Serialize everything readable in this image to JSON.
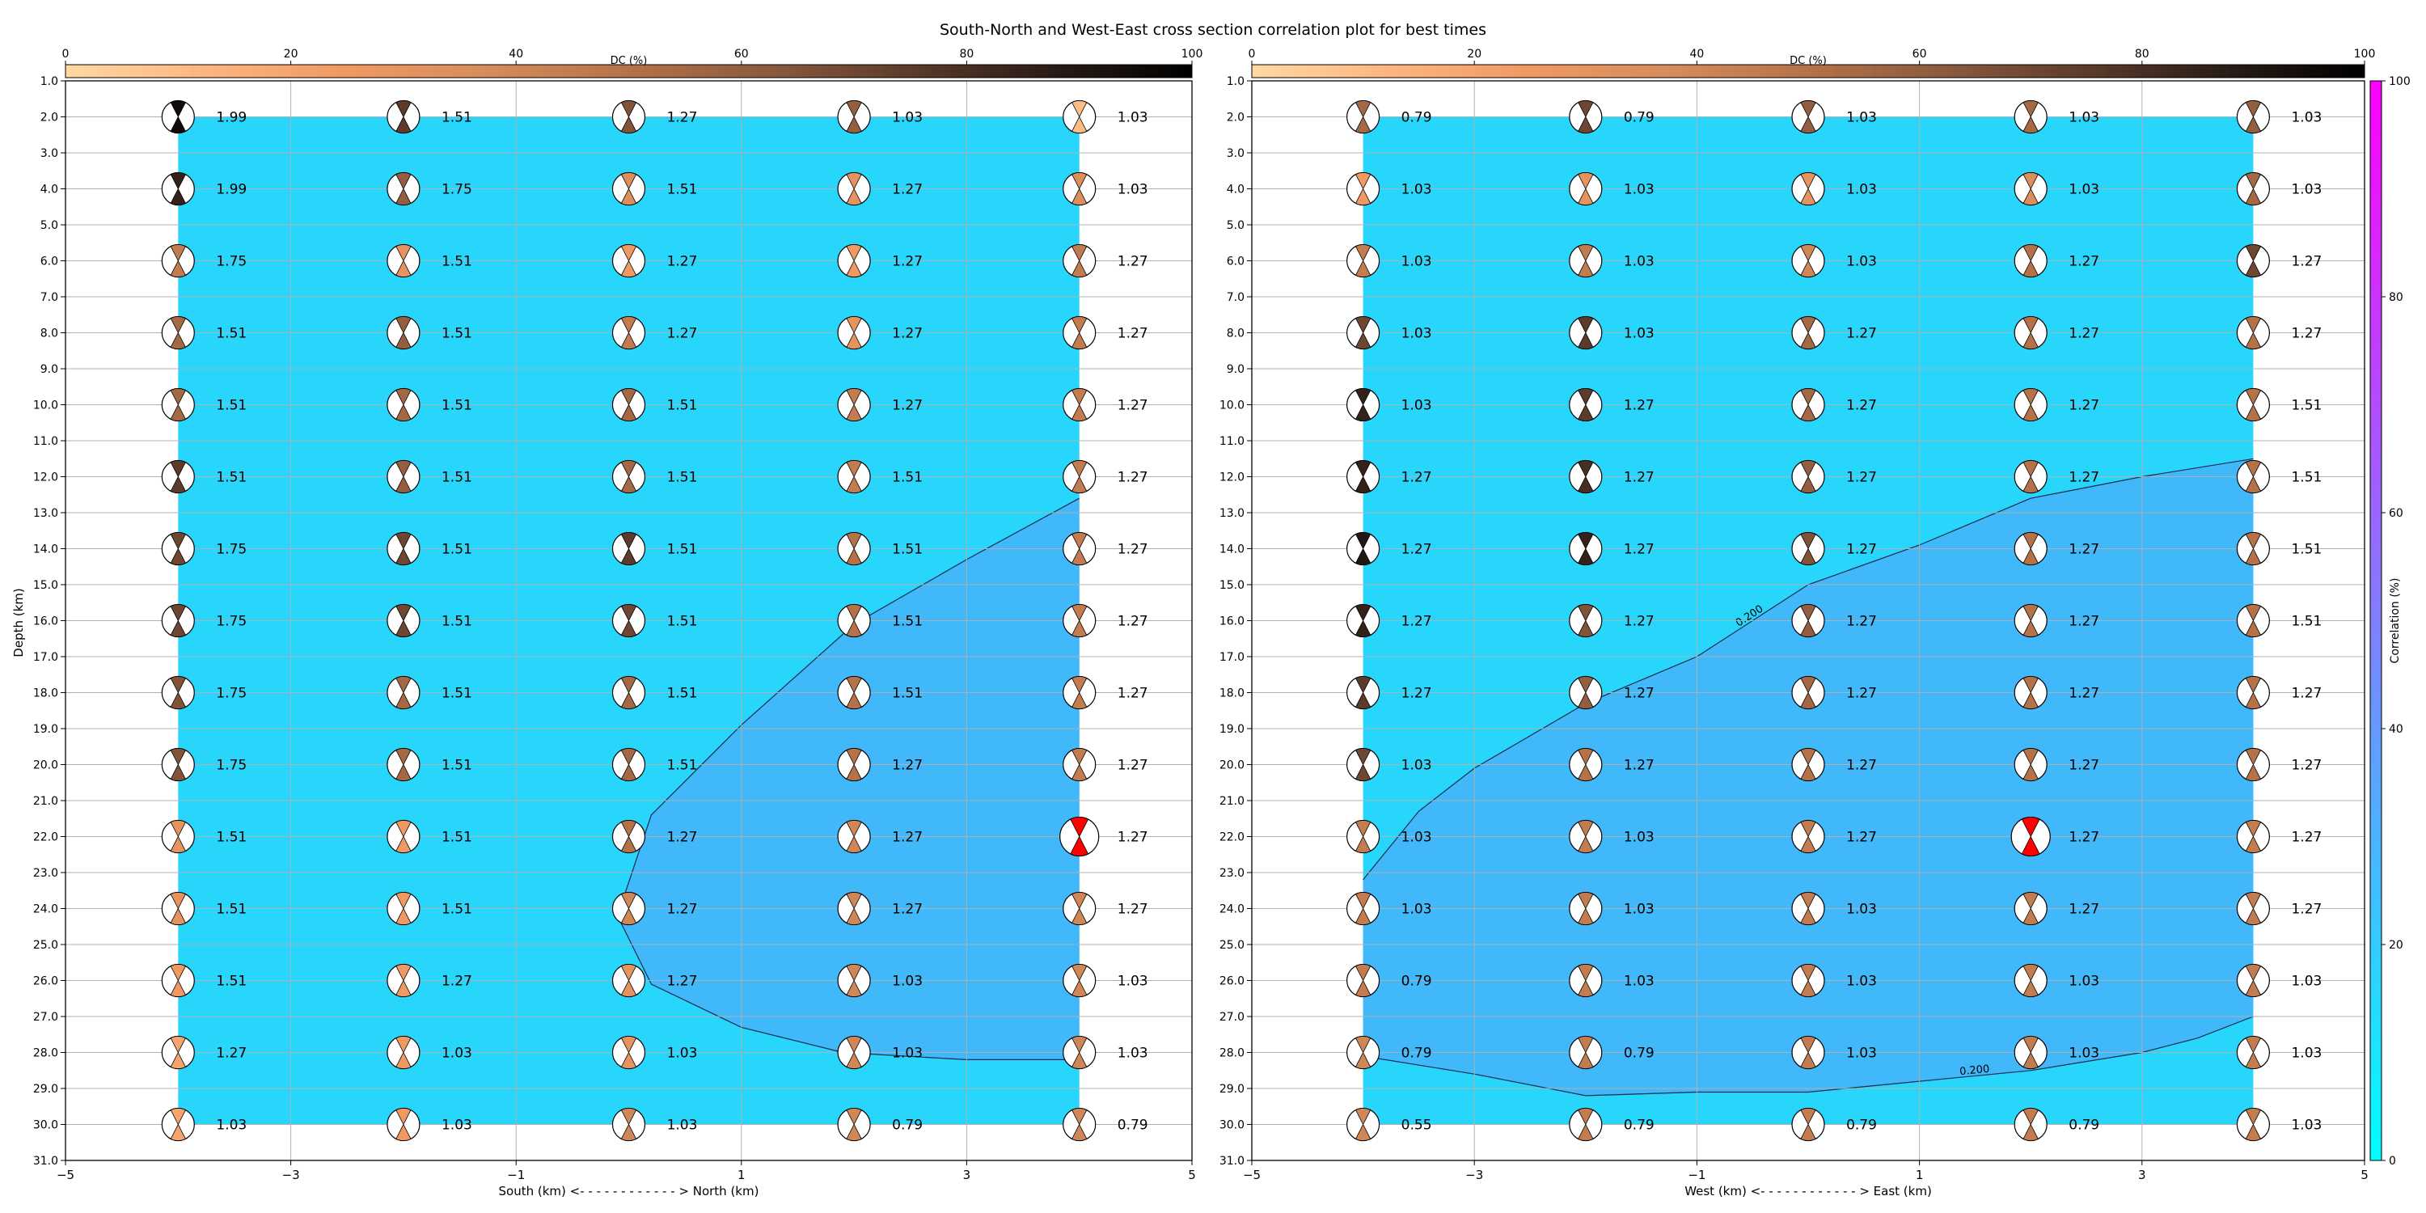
{
  "title": "South-North and West-East cross section correlation plot for best times",
  "colors": {
    "fill_low": "#28d6fb",
    "fill_high": "#40b8f9",
    "best_solution": "#ff0000",
    "dc_colormap": [
      "#ffd9a3",
      "#fdb57f",
      "#f09962",
      "#d68c5b",
      "#b57248",
      "#8a5a3e",
      "#5c3b2b",
      "#2a1c16",
      "#000000"
    ],
    "corr_colormap": [
      "#00ffff",
      "#ff00ff"
    ]
  },
  "dc_colorbar": {
    "label": "DC (%)",
    "ticks": [
      "0",
      "20",
      "40",
      "60",
      "80",
      "100"
    ]
  },
  "corr_colorbar": {
    "label": "Correlation (%)",
    "ticks": [
      "0",
      "20",
      "40",
      "60",
      "80",
      "100"
    ]
  },
  "y_axis": {
    "label": "Depth (km)",
    "ticks": [
      "1.0",
      "2.0",
      "3.0",
      "4.0",
      "5.0",
      "6.0",
      "7.0",
      "8.0",
      "9.0",
      "10.0",
      "11.0",
      "12.0",
      "13.0",
      "14.0",
      "15.0",
      "16.0",
      "17.0",
      "18.0",
      "19.0",
      "20.0",
      "21.0",
      "22.0",
      "23.0",
      "24.0",
      "25.0",
      "26.0",
      "27.0",
      "28.0",
      "29.0",
      "30.0",
      "31.0"
    ]
  },
  "chart_data": [
    {
      "type": "heatmap",
      "panel": "south-north",
      "xlabel": "South (km) <- - - - - - - - - - - - > North (km)",
      "ylabel": "Depth (km)",
      "xlim": [
        -5,
        5
      ],
      "ylim": [
        31,
        1
      ],
      "x_ticks": [
        "−5",
        "−3",
        "−1",
        "1",
        "3",
        "5"
      ],
      "grid_x": [
        -4,
        -2,
        0,
        2,
        4
      ],
      "grid_depths": [
        2,
        4,
        6,
        8,
        10,
        12,
        14,
        16,
        18,
        20,
        22,
        24,
        26,
        28,
        30
      ],
      "values": [
        [
          1.99,
          1.51,
          1.27,
          1.03,
          1.03
        ],
        [
          1.99,
          1.75,
          1.51,
          1.27,
          1.03
        ],
        [
          1.75,
          1.51,
          1.27,
          1.27,
          1.27
        ],
        [
          1.51,
          1.51,
          1.27,
          1.27,
          1.27
        ],
        [
          1.51,
          1.51,
          1.51,
          1.27,
          1.27
        ],
        [
          1.51,
          1.51,
          1.51,
          1.51,
          1.27
        ],
        [
          1.75,
          1.51,
          1.51,
          1.51,
          1.27
        ],
        [
          1.75,
          1.51,
          1.51,
          1.51,
          1.27
        ],
        [
          1.75,
          1.51,
          1.51,
          1.51,
          1.27
        ],
        [
          1.75,
          1.51,
          1.51,
          1.27,
          1.27
        ],
        [
          1.51,
          1.51,
          1.27,
          1.27,
          1.27
        ],
        [
          1.51,
          1.51,
          1.27,
          1.27,
          1.27
        ],
        [
          1.51,
          1.27,
          1.27,
          1.03,
          1.03
        ],
        [
          1.27,
          1.03,
          1.03,
          1.03,
          1.03
        ],
        [
          1.03,
          1.03,
          1.03,
          0.79,
          0.79
        ]
      ],
      "dc": [
        [
          95,
          75,
          65,
          60,
          10
        ],
        [
          85,
          60,
          35,
          30,
          35
        ],
        [
          45,
          30,
          25,
          25,
          45
        ],
        [
          55,
          60,
          45,
          30,
          45
        ],
        [
          55,
          55,
          55,
          45,
          45
        ],
        [
          75,
          60,
          55,
          45,
          45
        ],
        [
          70,
          70,
          75,
          50,
          45
        ],
        [
          70,
          70,
          70,
          50,
          45
        ],
        [
          65,
          55,
          55,
          50,
          45
        ],
        [
          65,
          55,
          55,
          50,
          45
        ],
        [
          30,
          25,
          50,
          40,
          50
        ],
        [
          30,
          25,
          40,
          40,
          40
        ],
        [
          25,
          25,
          30,
          40,
          40
        ],
        [
          20,
          25,
          30,
          40,
          40
        ],
        [
          20,
          25,
          40,
          40,
          40
        ]
      ],
      "best": {
        "x": 4,
        "depth": 22
      },
      "contours": [
        {
          "level": 0.2,
          "label": "",
          "points": [
            [
              4,
              12.6
            ],
            [
              3,
              14.3
            ],
            [
              2,
              16.1
            ],
            [
              1,
              18.9
            ],
            [
              0.2,
              21.4
            ],
            [
              -0.1,
              24.2
            ],
            [
              0.2,
              26.1
            ],
            [
              1,
              27.3
            ],
            [
              1.9,
              28
            ],
            [
              3,
              28.2
            ],
            [
              4,
              28.2
            ]
          ]
        }
      ],
      "filled_extent": {
        "x": [
          -4,
          4
        ],
        "depth": [
          2,
          30
        ]
      }
    },
    {
      "type": "heatmap",
      "panel": "west-east",
      "xlabel": "West (km) <- - - - - - - - - - - - > East (km)",
      "ylabel": "",
      "xlim": [
        -5,
        5
      ],
      "ylim": [
        31,
        1
      ],
      "x_ticks": [
        "−5",
        "−3",
        "−1",
        "1",
        "3",
        "5"
      ],
      "grid_x": [
        -4,
        -2,
        0,
        2,
        4
      ],
      "grid_depths": [
        2,
        4,
        6,
        8,
        10,
        12,
        14,
        16,
        18,
        20,
        22,
        24,
        26,
        28,
        30
      ],
      "values": [
        [
          0.79,
          0.79,
          1.03,
          1.03,
          1.03
        ],
        [
          1.03,
          1.03,
          1.03,
          1.03,
          1.03
        ],
        [
          1.03,
          1.03,
          1.03,
          1.27,
          1.27
        ],
        [
          1.03,
          1.03,
          1.27,
          1.27,
          1.27
        ],
        [
          1.03,
          1.27,
          1.27,
          1.27,
          1.51
        ],
        [
          1.27,
          1.27,
          1.27,
          1.27,
          1.51
        ],
        [
          1.27,
          1.27,
          1.27,
          1.27,
          1.51
        ],
        [
          1.27,
          1.27,
          1.27,
          1.27,
          1.51
        ],
        [
          1.27,
          1.27,
          1.27,
          1.27,
          1.27
        ],
        [
          1.03,
          1.27,
          1.27,
          1.27,
          1.27
        ],
        [
          1.03,
          1.03,
          1.27,
          1.27,
          1.27
        ],
        [
          1.03,
          1.03,
          1.03,
          1.27,
          1.27
        ],
        [
          0.79,
          1.03,
          1.03,
          1.03,
          1.03
        ],
        [
          0.79,
          0.79,
          1.03,
          1.03,
          1.03
        ],
        [
          0.55,
          0.79,
          0.79,
          0.79,
          1.03
        ]
      ],
      "dc": [
        [
          55,
          70,
          60,
          55,
          60
        ],
        [
          25,
          30,
          30,
          35,
          55
        ],
        [
          45,
          45,
          40,
          50,
          70
        ],
        [
          70,
          75,
          55,
          50,
          50
        ],
        [
          85,
          75,
          55,
          50,
          50
        ],
        [
          85,
          80,
          60,
          50,
          50
        ],
        [
          90,
          85,
          65,
          50,
          50
        ],
        [
          85,
          65,
          60,
          50,
          50
        ],
        [
          75,
          60,
          55,
          50,
          50
        ],
        [
          70,
          50,
          50,
          50,
          50
        ],
        [
          45,
          45,
          45,
          45,
          45
        ],
        [
          45,
          45,
          45,
          45,
          45
        ],
        [
          45,
          45,
          45,
          45,
          45
        ],
        [
          40,
          45,
          45,
          45,
          45
        ],
        [
          40,
          45,
          45,
          45,
          45
        ]
      ],
      "best": {
        "x": 2,
        "depth": 22
      },
      "contours": [
        {
          "level": 0.2,
          "label": "0.200",
          "points": [
            [
              -4,
              23.2
            ],
            [
              -3.5,
              21.3
            ],
            [
              -3,
              20.1
            ],
            [
              -2,
              18.3
            ],
            [
              -1,
              17
            ],
            [
              0,
              15
            ],
            [
              1,
              13.9
            ],
            [
              2,
              12.6
            ],
            [
              3,
              12
            ],
            [
              4,
              11.5
            ]
          ]
        },
        {
          "level": 0.2,
          "label": "0.200",
          "points": [
            [
              -4,
              28.1
            ],
            [
              -3,
              28.6
            ],
            [
              -2,
              29.2
            ],
            [
              -1,
              29.1
            ],
            [
              0,
              29.1
            ],
            [
              1,
              28.8
            ],
            [
              2,
              28.5
            ],
            [
              3,
              28
            ],
            [
              3.5,
              27.6
            ],
            [
              4,
              27
            ]
          ]
        }
      ],
      "filled_extent": {
        "x": [
          -4,
          4
        ],
        "depth": [
          2,
          30
        ]
      }
    }
  ]
}
